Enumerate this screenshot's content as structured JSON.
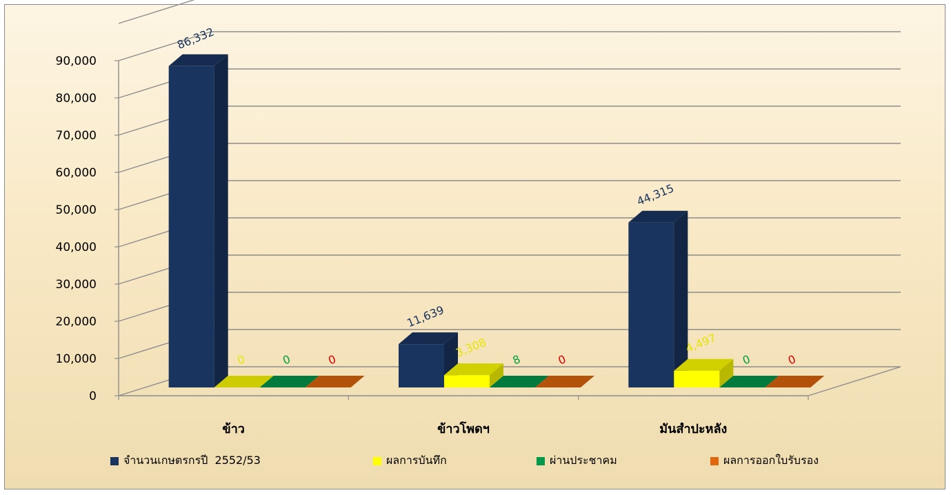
{
  "chart_data": {
    "type": "bar",
    "categories": [
      "ข้าว",
      "ข้าวโพดฯ",
      "มันสำปะหลัง"
    ],
    "series": [
      {
        "name": "จำนวนเกษตรกรปี  2552/53",
        "values": [
          86332,
          11639,
          44315
        ],
        "color": "#1a3460",
        "label_color": "#1a3460"
      },
      {
        "name": "ผลการบันทึก",
        "values": [
          0,
          3308,
          4497
        ],
        "color": "#ffff00",
        "label_color": "#e6e600"
      },
      {
        "name": "ผ่านประชาคม",
        "values": [
          0,
          8,
          0
        ],
        "color": "#00994c",
        "label_color": "#00a040"
      },
      {
        "name": "ผลการออกใบรับรอง",
        "values": [
          0,
          0,
          0
        ],
        "color": "#e0670e",
        "label_color": "#e00000"
      }
    ],
    "data_labels": [
      [
        "86,332",
        "11,639",
        "44,315"
      ],
      [
        "0",
        "3,308",
        "4,497"
      ],
      [
        "0",
        "8",
        "0"
      ],
      [
        "0",
        "0",
        "0"
      ]
    ],
    "y_ticks": [
      "0",
      "10,000",
      "20,000",
      "30,000",
      "40,000",
      "50,000",
      "60,000",
      "70,000",
      "80,000",
      "90,000"
    ],
    "ylim": [
      0,
      100000
    ],
    "grid": true,
    "legend_position": "bottom",
    "style": "3d-clustered-column"
  }
}
